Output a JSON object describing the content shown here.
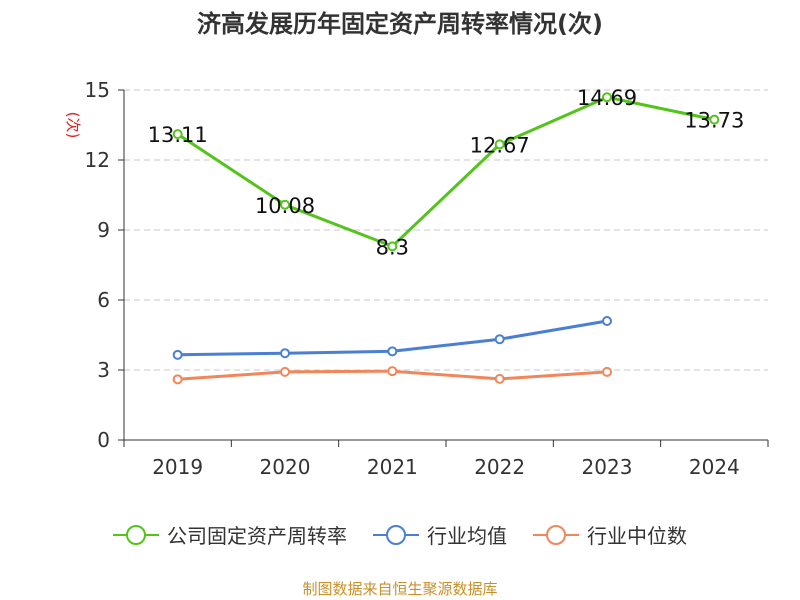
{
  "chart_data": {
    "type": "line",
    "title": "济高发展历年固定资产周转率情况(次)",
    "ylabel": "(次)",
    "categories": [
      "2019",
      "2020",
      "2021",
      "2022",
      "2023",
      "2024"
    ],
    "ylim": [
      0,
      15
    ],
    "yticks": [
      0,
      3,
      6,
      9,
      12,
      15
    ],
    "grid": true,
    "legend_position": "bottom",
    "series": [
      {
        "name": "公司固定资产周转率",
        "color": "#52c41a",
        "values": [
          13.11,
          10.08,
          8.3,
          12.67,
          14.69,
          13.73
        ],
        "labels": [
          "13.11",
          "10.08",
          "8.3",
          "12.67",
          "14.69",
          "13.73"
        ]
      },
      {
        "name": "行业均值",
        "color": "#4a7fd4",
        "values": [
          3.65,
          3.72,
          3.8,
          4.32,
          5.1,
          null
        ]
      },
      {
        "name": "行业中位数",
        "color": "#f0875a",
        "values": [
          2.6,
          2.92,
          2.95,
          2.62,
          2.92,
          null
        ]
      }
    ]
  },
  "source": "制图数据来自恒生聚源数据库"
}
